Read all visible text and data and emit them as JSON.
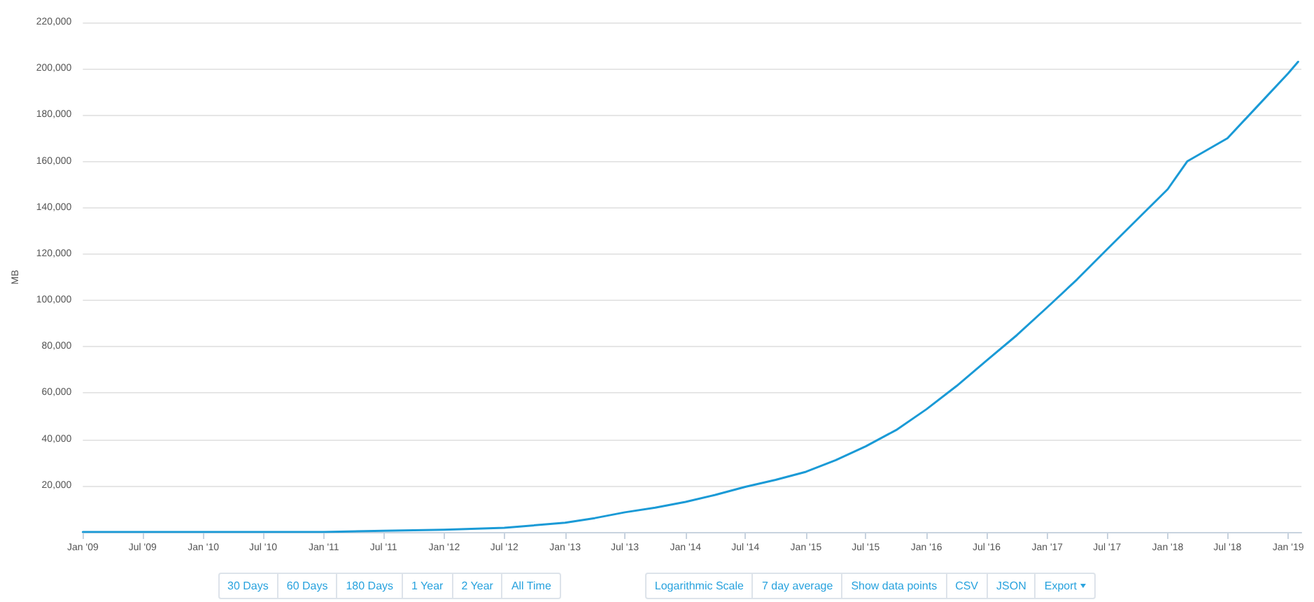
{
  "chart_data": {
    "type": "line",
    "ylabel": "MB",
    "grid": "y",
    "marker": "none",
    "line_style": "solid",
    "annotations": [
      "30 Days",
      "60 Days",
      "180 Days",
      "1 Year",
      "2 Year",
      "All Time",
      "Logarithmic Scale",
      "7 day average",
      "Show data points",
      "CSV",
      "JSON",
      "Export"
    ],
    "xlim": [
      "2009-01-01",
      "2019-02-10"
    ],
    "xticks": [
      {
        "value": "2009-01",
        "label": "Jan '09"
      },
      {
        "value": "2009-07",
        "label": "Jul '09"
      },
      {
        "value": "2010-01",
        "label": "Jan '10"
      },
      {
        "value": "2010-07",
        "label": "Jul '10"
      },
      {
        "value": "2011-01",
        "label": "Jan '11"
      },
      {
        "value": "2011-07",
        "label": "Jul '11"
      },
      {
        "value": "2012-01",
        "label": "Jan '12"
      },
      {
        "value": "2012-07",
        "label": "Jul '12"
      },
      {
        "value": "2013-01",
        "label": "Jan '13"
      },
      {
        "value": "2013-07",
        "label": "Jul '13"
      },
      {
        "value": "2014-01",
        "label": "Jan '14"
      },
      {
        "value": "2014-07",
        "label": "Jul '14"
      },
      {
        "value": "2015-01",
        "label": "Jan '15"
      },
      {
        "value": "2015-07",
        "label": "Jul '15"
      },
      {
        "value": "2016-01",
        "label": "Jan '16"
      },
      {
        "value": "2016-07",
        "label": "Jul '16"
      },
      {
        "value": "2017-01",
        "label": "Jan '17"
      },
      {
        "value": "2017-07",
        "label": "Jul '17"
      },
      {
        "value": "2018-01",
        "label": "Jan '18"
      },
      {
        "value": "2018-07",
        "label": "Jul '18"
      },
      {
        "value": "2019-01",
        "label": "Jan '19"
      }
    ],
    "ylim": [
      0,
      220000
    ],
    "yticks": [
      {
        "value": 0,
        "label": null
      },
      {
        "value": 20000,
        "label": "20,000"
      },
      {
        "value": 40000,
        "label": "40,000"
      },
      {
        "value": 60000,
        "label": "60,000"
      },
      {
        "value": 80000,
        "label": "80,000"
      },
      {
        "value": 100000,
        "label": "100,000"
      },
      {
        "value": 120000,
        "label": "120,000"
      },
      {
        "value": 140000,
        "label": "140,000"
      },
      {
        "value": 160000,
        "label": "160,000"
      },
      {
        "value": 180000,
        "label": "180,000"
      },
      {
        "value": 200000,
        "label": "200,000"
      },
      {
        "value": 220000,
        "label": "220,000"
      }
    ],
    "x": [
      "2009-01",
      "2010-01",
      "2011-01",
      "2011-07",
      "2012-01",
      "2012-07",
      "2013-01",
      "2013-04",
      "2013-07",
      "2013-10",
      "2014-01",
      "2014-04",
      "2014-07",
      "2014-10",
      "2015-01",
      "2015-04",
      "2015-07",
      "2015-10",
      "2016-01",
      "2016-04",
      "2016-07",
      "2016-10",
      "2017-01",
      "2017-04",
      "2017-07",
      "2017-10",
      "2018-01",
      "2018-03",
      "2018-05",
      "2018-07",
      "2018-10",
      "2019-01",
      "2019-01-31"
    ],
    "series": [
      {
        "color": "#1a9ad6",
        "values": [
          0,
          0,
          0,
          500,
          1000,
          1800,
          4000,
          6000,
          8500,
          10500,
          13000,
          16000,
          19500,
          22500,
          26000,
          31000,
          37000,
          44000,
          53000,
          63000,
          74000,
          85000,
          97000,
          109000,
          122000,
          135000,
          148000,
          160000,
          165000,
          170000,
          184000,
          198000,
          203000
        ]
      }
    ]
  }
}
